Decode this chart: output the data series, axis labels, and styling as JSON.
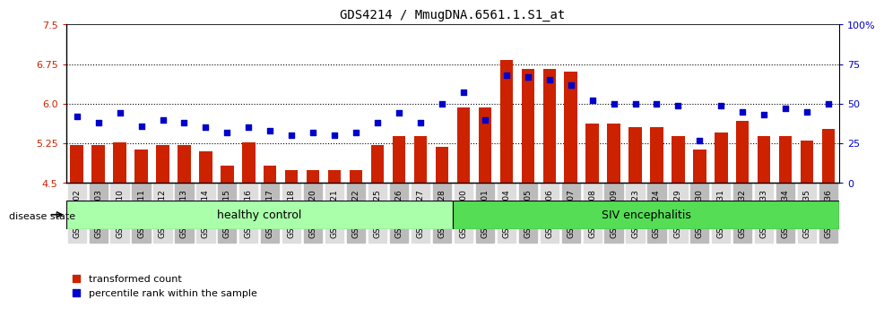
{
  "title": "GDS4214 / MmugDNA.6561.1.S1_at",
  "categories": [
    "GSM347802",
    "GSM347803",
    "GSM347810",
    "GSM347811",
    "GSM347812",
    "GSM347813",
    "GSM347814",
    "GSM347815",
    "GSM347816",
    "GSM347817",
    "GSM347818",
    "GSM347820",
    "GSM347821",
    "GSM347822",
    "GSM347825",
    "GSM347826",
    "GSM347827",
    "GSM347828",
    "GSM347800",
    "GSM347801",
    "GSM347804",
    "GSM347805",
    "GSM347806",
    "GSM347807",
    "GSM347808",
    "GSM347809",
    "GSM347823",
    "GSM347824",
    "GSM347829",
    "GSM347830",
    "GSM347831",
    "GSM347832",
    "GSM347833",
    "GSM347834",
    "GSM347835",
    "GSM347836"
  ],
  "bar_values": [
    5.22,
    5.22,
    5.27,
    5.13,
    5.22,
    5.22,
    5.1,
    4.83,
    5.27,
    4.83,
    4.75,
    4.75,
    4.75,
    4.75,
    5.22,
    5.38,
    5.38,
    5.18,
    5.93,
    5.93,
    6.82,
    6.65,
    6.65,
    6.6,
    5.62,
    5.62,
    5.55,
    5.55,
    5.38,
    5.13,
    5.45,
    5.68,
    5.38,
    5.38,
    5.3,
    5.53
  ],
  "dot_values": [
    42,
    38,
    44,
    36,
    40,
    38,
    35,
    32,
    35,
    33,
    30,
    32,
    30,
    32,
    38,
    44,
    38,
    50,
    57,
    40,
    68,
    67,
    65,
    62,
    52,
    50,
    50,
    50,
    49,
    27,
    49,
    45,
    43,
    47,
    45,
    50
  ],
  "healthy_count": 18,
  "siv_count": 18,
  "ylim_left": [
    4.5,
    7.5
  ],
  "ylim_right": [
    0,
    100
  ],
  "yticks_left": [
    4.5,
    5.25,
    6.0,
    6.75,
    7.5
  ],
  "yticks_right": [
    0,
    25,
    50,
    75,
    100
  ],
  "bar_color": "#cc2200",
  "dot_color": "#0000cc",
  "healthy_color": "#aaffaa",
  "siv_color": "#55dd55",
  "label_bar": "transformed count",
  "label_dot": "percentile rank within the sample",
  "group1_label": "healthy control",
  "group2_label": "SIV encephalitis",
  "disease_state_label": "disease state"
}
